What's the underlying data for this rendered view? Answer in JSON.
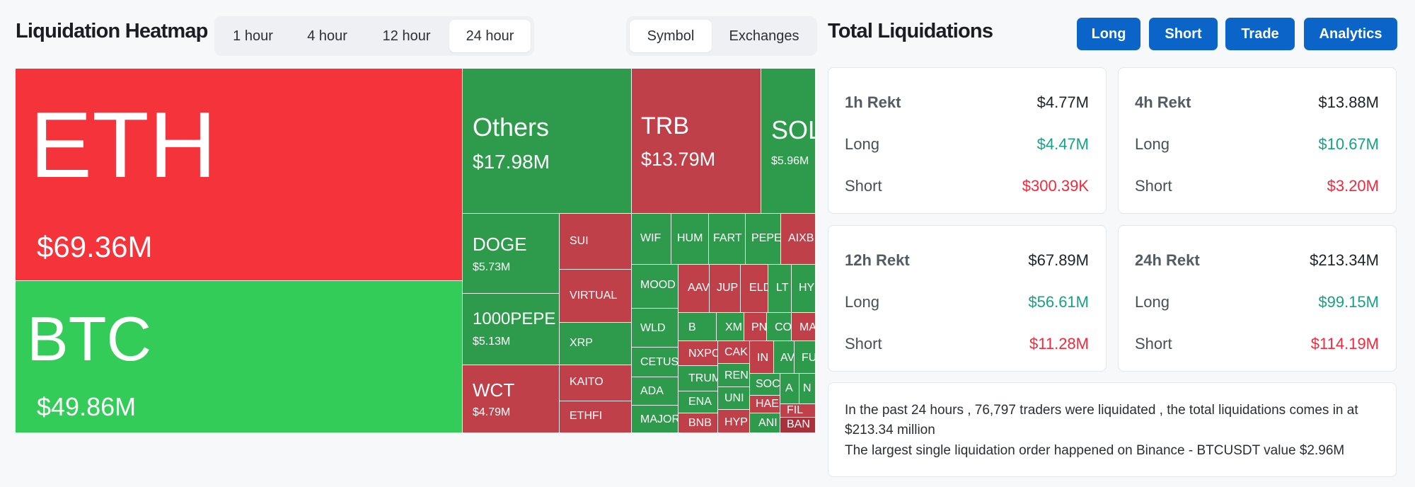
{
  "header": {
    "title": "Liquidation Heatmap",
    "time_options": [
      "1 hour",
      "4 hour",
      "12 hour",
      "24 hour"
    ],
    "time_selected": "24 hour",
    "view_options": [
      "Symbol",
      "Exchanges"
    ],
    "view_selected": "Symbol"
  },
  "right_header": {
    "title": "Total Liquidations",
    "buttons": [
      "Long",
      "Short",
      "Trade",
      "Analytics"
    ]
  },
  "heatmap": {
    "tiles": [
      {
        "symbol": "ETH",
        "value": "$69.36M"
      },
      {
        "symbol": "BTC",
        "value": "$49.86M"
      },
      {
        "symbol": "Others",
        "value": "$17.98M"
      },
      {
        "symbol": "TRB",
        "value": "$13.79M"
      },
      {
        "symbol": "SOL",
        "value": "$5.96M"
      },
      {
        "symbol": "DOGE",
        "value": "$5.73M"
      },
      {
        "symbol": "1000PEPE",
        "value": "$5.13M"
      },
      {
        "symbol": "WCT",
        "value": "$4.79M"
      },
      {
        "symbol": "SUI"
      },
      {
        "symbol": "VIRTUAL"
      },
      {
        "symbol": "XRP"
      },
      {
        "symbol": "KAITO"
      },
      {
        "symbol": "ETHFI"
      },
      {
        "symbol": "WIF"
      },
      {
        "symbol": "HUM"
      },
      {
        "symbol": "FART"
      },
      {
        "symbol": "PEPE"
      },
      {
        "symbol": "AIXB"
      },
      {
        "symbol": "MOOD"
      },
      {
        "symbol": "AAV"
      },
      {
        "symbol": "JUP"
      },
      {
        "symbol": "ELD"
      },
      {
        "symbol": "LT"
      },
      {
        "symbol": "HY"
      },
      {
        "symbol": "WLD"
      },
      {
        "symbol": "B"
      },
      {
        "symbol": "XM"
      },
      {
        "symbol": "PN"
      },
      {
        "symbol": "CO"
      },
      {
        "symbol": "MA"
      },
      {
        "symbol": "CETUS"
      },
      {
        "symbol": "NXPC"
      },
      {
        "symbol": "CAK"
      },
      {
        "symbol": "IN"
      },
      {
        "symbol": "AV"
      },
      {
        "symbol": "FU"
      },
      {
        "symbol": "TRUM"
      },
      {
        "symbol": "REN"
      },
      {
        "symbol": "SOC"
      },
      {
        "symbol": "A"
      },
      {
        "symbol": "N"
      },
      {
        "symbol": "ADA"
      },
      {
        "symbol": "ENA"
      },
      {
        "symbol": "UNI"
      },
      {
        "symbol": "HAE"
      },
      {
        "symbol": "FIL"
      },
      {
        "symbol": "MAJOR"
      },
      {
        "symbol": "BNB"
      },
      {
        "symbol": "HYP"
      },
      {
        "symbol": "ANI"
      },
      {
        "symbol": "BAN"
      }
    ]
  },
  "stats": [
    {
      "title": "1h Rekt",
      "total": "$4.77M",
      "long_label": "Long",
      "long": "$4.47M",
      "short_label": "Short",
      "short": "$300.39K"
    },
    {
      "title": "4h Rekt",
      "total": "$13.88M",
      "long_label": "Long",
      "long": "$10.67M",
      "short_label": "Short",
      "short": "$3.20M"
    },
    {
      "title": "12h Rekt",
      "total": "$67.89M",
      "long_label": "Long",
      "long": "$56.61M",
      "short_label": "Short",
      "short": "$11.28M"
    },
    {
      "title": "24h Rekt",
      "total": "$213.34M",
      "long_label": "Long",
      "long": "$99.15M",
      "short_label": "Short",
      "short": "$114.19M"
    }
  ],
  "summary": {
    "line1": "In the past 24 hours , 76,797 traders were liquidated , the total liquidations comes in at",
    "line2": "$213.34 million",
    "line3": "The largest single liquidation order happened on Binance - BTCUSDT value $2.96M"
  },
  "colors": {
    "long_green": "#17a085",
    "short_red": "#ee2a3c",
    "button_blue": "#0b64c8",
    "eth_red": "#f5333a",
    "btc_green": "#33cc59"
  }
}
